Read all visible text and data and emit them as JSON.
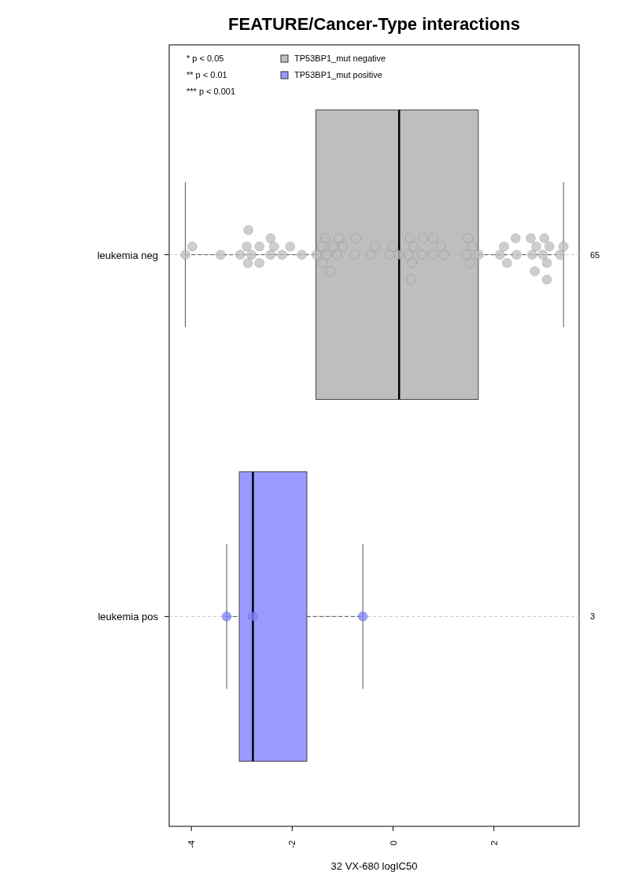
{
  "chart_data": {
    "type": "box",
    "orientation": "horizontal",
    "title": "FEATURE/Cancer-Type interactions",
    "xlabel": "32 VX-680 logIC50",
    "categories": [
      "leukemia neg",
      "leukemia pos"
    ],
    "xlim": [
      -4.44,
      3.69
    ],
    "xticks": [
      -4,
      -2,
      0,
      2
    ],
    "grid": "y",
    "legend": "top left",
    "series": [
      {
        "name": "TP53BP1_mut negative",
        "color": "#bebebe",
        "boxes": [
          {
            "low": -4.12,
            "q1": -1.53,
            "median": 0.12,
            "q3": 1.69,
            "high": 3.38
          },
          null
        ]
      },
      {
        "name": "TP53BP1_mut positive",
        "color": "#9999ff",
        "boxes": [
          null,
          {
            "low": -3.3,
            "q1": -3.05,
            "median": -2.78,
            "q3": -1.71,
            "high": -0.6
          }
        ]
      },
      {
        "type": "scatter",
        "color": "#bebebe",
        "marker": "circle",
        "x": [
          "leukemia neg",
          "leukemia neg",
          "leukemia neg",
          "leukemia neg",
          "leukemia neg",
          "leukemia neg",
          "leukemia neg",
          "leukemia neg",
          "leukemia neg",
          "leukemia neg",
          "leukemia neg",
          "leukemia neg",
          "leukemia neg",
          "leukemia neg",
          "leukemia neg",
          "leukemia neg",
          "leukemia neg",
          "leukemia neg",
          "leukemia neg",
          "leukemia neg",
          "leukemia neg",
          "leukemia neg",
          "leukemia neg",
          "leukemia neg",
          "leukemia neg",
          "leukemia neg",
          "leukemia neg",
          "leukemia neg",
          "leukemia neg",
          "leukemia neg",
          "leukemia neg",
          "leukemia neg",
          "leukemia neg",
          "leukemia neg",
          "leukemia neg",
          "leukemia neg",
          "leukemia neg",
          "leukemia neg",
          "leukemia neg",
          "leukemia neg",
          "leukemia neg",
          "leukemia neg",
          "leukemia neg",
          "leukemia neg",
          "leukemia neg",
          "leukemia neg",
          "leukemia neg",
          "leukemia neg",
          "leukemia neg",
          "leukemia neg",
          "leukemia neg",
          "leukemia neg",
          "leukemia neg",
          "leukemia neg",
          "leukemia neg",
          "leukemia neg",
          "leukemia neg",
          "leukemia neg",
          "leukemia neg",
          "leukemia neg",
          "leukemia neg",
          "leukemia neg",
          "leukemia neg",
          "leukemia neg",
          "leukemia neg"
        ],
        "values": [
          -4.12,
          -3.98,
          -3.42,
          -3.03,
          -2.9,
          -2.81,
          -2.88,
          -2.87,
          -2.65,
          -2.65,
          -2.43,
          -2.43,
          -2.36,
          -2.2,
          -2.04,
          -1.81,
          -1.52,
          -1.41,
          -1.32,
          -1.39,
          -1.34,
          -1.24,
          -1.19,
          -1.11,
          -1.07,
          -1.0,
          -0.76,
          -0.73,
          -0.44,
          -0.36,
          -0.07,
          -0.01,
          0.11,
          0.31,
          0.33,
          0.38,
          0.36,
          0.4,
          0.57,
          0.6,
          0.79,
          0.8,
          0.95,
          1.01,
          1.46,
          1.49,
          1.57,
          1.53,
          1.7,
          2.12,
          2.2,
          2.26,
          2.45,
          2.43,
          2.76,
          2.73,
          2.81,
          2.84,
          2.97,
          3.0,
          3.1,
          3.05,
          3.05,
          3.31,
          3.38
        ]
      },
      {
        "type": "scatter",
        "color": "#7f7fff",
        "marker": "circle",
        "x": [
          "leukemia pos",
          "leukemia pos",
          "leukemia pos"
        ],
        "values": [
          -3.3,
          -2.78,
          -0.6
        ]
      }
    ],
    "annotations": [
      "* p < 0.05",
      "** p < 0.01",
      "*** p < 0.001",
      "65",
      "3"
    ]
  }
}
